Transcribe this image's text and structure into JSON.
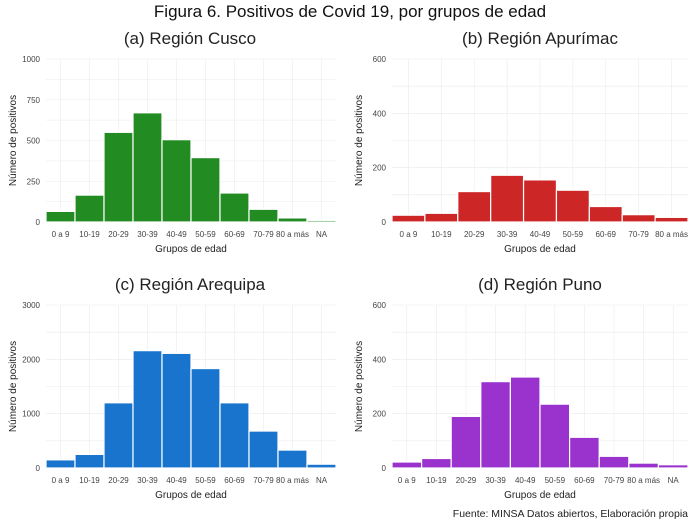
{
  "title": "Figura 6. Positivos de Covid 19, por grupos de edad",
  "caption": "Fuente: MINSA Datos abiertos, Elaboración propia",
  "chart_data": [
    {
      "type": "bar",
      "title": "(a) Región Cusco",
      "xlabel": "Grupos de edad",
      "ylabel": "Número de positivos",
      "color": "#228B22",
      "categories": [
        "0 a 9",
        "10-19",
        "20-29",
        "30-39",
        "40-49",
        "50-59",
        "60-69",
        "70-79",
        "80 a más",
        "NA"
      ],
      "values": [
        65,
        165,
        550,
        670,
        505,
        395,
        178,
        78,
        25,
        10
      ],
      "ylim": [
        0,
        1000
      ],
      "yticks": [
        0,
        250,
        500,
        750,
        1000
      ],
      "grid": true
    },
    {
      "type": "bar",
      "title": "(b) Región Apurímac",
      "xlabel": "Grupos de edad",
      "ylabel": "Número de positivos",
      "color": "#CD2626",
      "categories": [
        "0 a 9",
        "10-19",
        "20-29",
        "30-39",
        "40-49",
        "50-59",
        "60-69",
        "70-79",
        "80 a más"
      ],
      "values": [
        25,
        32,
        112,
        172,
        155,
        117,
        57,
        27,
        17
      ],
      "ylim": [
        0,
        600
      ],
      "yticks": [
        0,
        200,
        400,
        600
      ],
      "grid": true
    },
    {
      "type": "bar",
      "title": "(c) Región Arequipa",
      "xlabel": "Grupos de edad",
      "ylabel": "Número de positivos",
      "color": "#1874CD",
      "categories": [
        "0 a 9",
        "10-19",
        "20-29",
        "30-39",
        "40-49",
        "50-59",
        "60-69",
        "70-79",
        "80 a más",
        "NA"
      ],
      "values": [
        150,
        250,
        1200,
        2160,
        2110,
        1830,
        1200,
        680,
        330,
        70
      ],
      "ylim": [
        0,
        3000
      ],
      "yticks": [
        0,
        1000,
        2000,
        3000
      ],
      "grid": true
    },
    {
      "type": "bar",
      "title": "(d) Región Puno",
      "xlabel": "Grupos de edad",
      "ylabel": "Número de positivos",
      "color": "#9A32CD",
      "categories": [
        "0 a 9",
        "10-19",
        "20-29",
        "30-39",
        "40-49",
        "50-59",
        "60-69",
        "70-79",
        "80 a más",
        "NA"
      ],
      "values": [
        22,
        35,
        190,
        318,
        335,
        235,
        113,
        43,
        18,
        12
      ],
      "ylim": [
        0,
        600
      ],
      "yticks": [
        0,
        200,
        400,
        600
      ],
      "grid": true
    }
  ]
}
